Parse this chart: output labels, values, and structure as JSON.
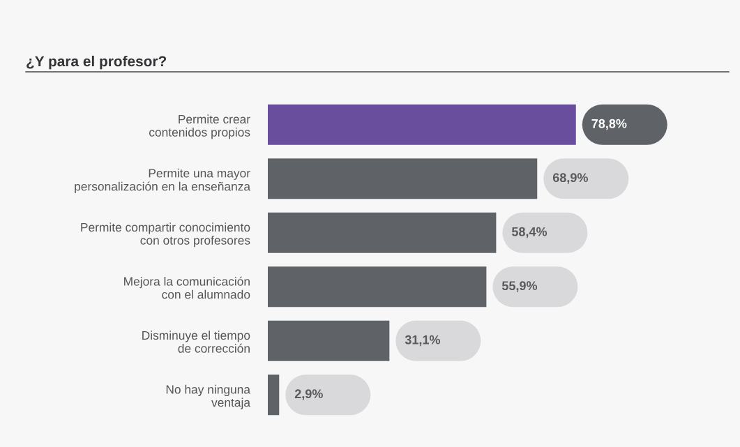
{
  "chart_data": {
    "type": "bar",
    "orientation": "horizontal",
    "title": "¿Y para el profesor?",
    "categories": [
      "Permite crear\ncontenidos propios",
      "Permite una mayor\npersonalización en la enseñanza",
      "Permite compartir conocimiento\ncon otros profesores",
      "Mejora la comunicación\ncon el alumnado",
      "Disminuye el tiempo\nde corrección",
      "No hay ninguna\nventaja"
    ],
    "values": [
      78.8,
      68.9,
      58.4,
      55.9,
      31.1,
      2.9
    ],
    "colors": [
      "#694e9d",
      "#5f6266",
      "#5f6266",
      "#5f6266",
      "#5f6266",
      "#5f6266"
    ],
    "value_labels": [
      "78,8%",
      "68,9%",
      "58,4%",
      "55,9%",
      "31,1%",
      "2,9%"
    ],
    "grid": false,
    "legend": false,
    "tick_labels": "y"
  }
}
